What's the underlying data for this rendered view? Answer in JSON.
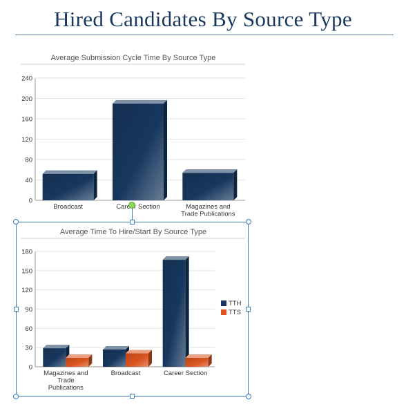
{
  "page": {
    "title": "Hired Candidates By Source Type"
  },
  "colors": {
    "title": "#17375e",
    "tth": "#17375e",
    "tts": "#d9541e",
    "selection": "#3a7ab8",
    "rotate_handle": "#8ed35a"
  },
  "chart_data": [
    {
      "type": "bar",
      "title": "Average Submission Cycle Time By Source Type",
      "categories": [
        "Broadcast",
        "Career Section",
        "Magazines and Trade Publications"
      ],
      "series": [
        {
          "values": [
            52,
            190,
            54
          ]
        }
      ],
      "ylim": [
        0,
        240
      ],
      "yticks": [
        0,
        40,
        80,
        120,
        160,
        200,
        240
      ],
      "grid": true,
      "legend": "none"
    },
    {
      "type": "bar",
      "title": "Average Time To Hire/Start By Source Type",
      "categories": [
        "Magazines and Trade Publications",
        "Broadcast",
        "Career Section"
      ],
      "series": [
        {
          "name": "TTH",
          "values": [
            29,
            27,
            167
          ]
        },
        {
          "name": "TTS",
          "values": [
            14,
            21,
            14
          ]
        }
      ],
      "ylim": [
        0,
        180
      ],
      "yticks": [
        0,
        30,
        60,
        90,
        120,
        150,
        180
      ],
      "grid": true,
      "legend": "right"
    }
  ]
}
